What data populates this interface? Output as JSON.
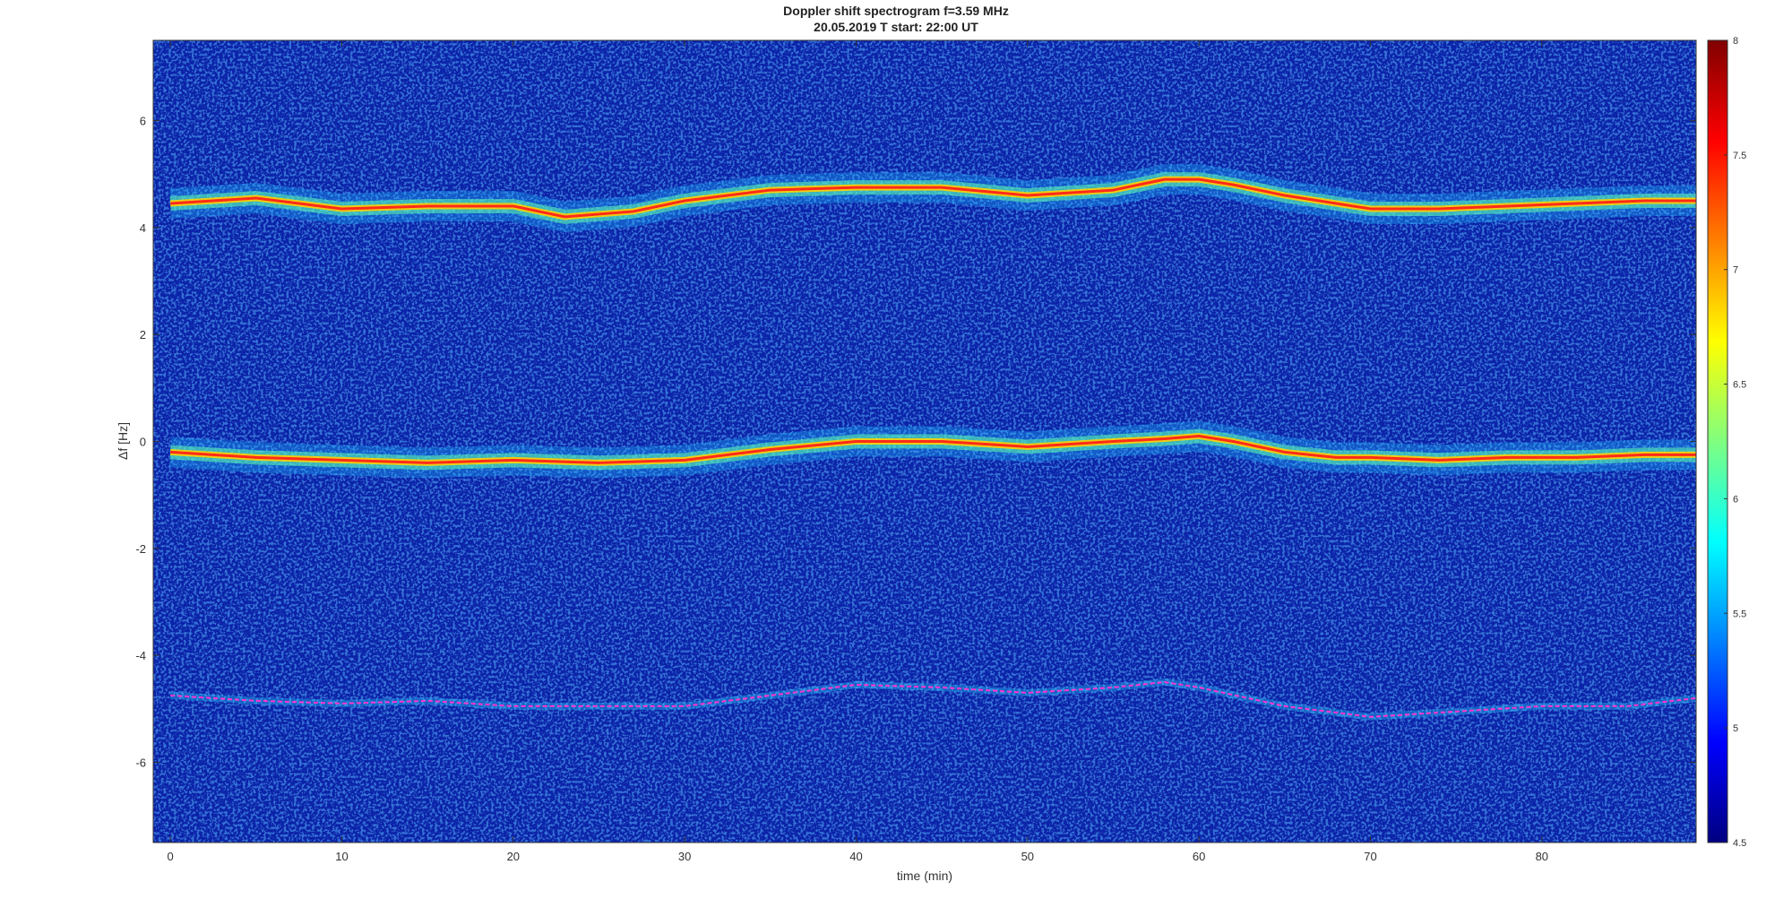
{
  "chart_data": {
    "type": "heatmap",
    "title": "Doppler shift spectrogram f=3.59 MHz",
    "subtitle": "20.05.2019   T start: 22:00 UT",
    "xlabel": "time (min)",
    "ylabel": "Δf [Hz]",
    "xlim": [
      -1,
      89
    ],
    "ylim": [
      -7.5,
      7.5
    ],
    "xticks": [
      0,
      10,
      20,
      30,
      40,
      50,
      60,
      70,
      80
    ],
    "yticks": [
      -6,
      -4,
      -2,
      0,
      2,
      4,
      6
    ],
    "colorbar": {
      "colormap": "jet",
      "range": [
        4.5,
        8
      ],
      "ticks": [
        4.5,
        5,
        5.5,
        6,
        6.5,
        7,
        7.5,
        8
      ]
    },
    "series": [
      {
        "color": "#ff2a1a",
        "x": [
          0,
          5,
          10,
          15,
          20,
          23,
          27,
          30,
          35,
          40,
          45,
          50,
          55,
          58,
          60,
          62,
          65,
          68,
          70,
          74,
          78,
          82,
          86,
          89
        ],
        "y": [
          4.45,
          4.55,
          4.35,
          4.4,
          4.4,
          4.2,
          4.3,
          4.5,
          4.7,
          4.75,
          4.75,
          4.6,
          4.7,
          4.9,
          4.9,
          4.8,
          4.6,
          4.45,
          4.35,
          4.35,
          4.4,
          4.45,
          4.5,
          4.5
        ]
      },
      {
        "color": "#ff2a1a",
        "x": [
          0,
          5,
          10,
          15,
          20,
          25,
          30,
          35,
          40,
          45,
          50,
          55,
          58,
          60,
          62,
          65,
          68,
          70,
          74,
          78,
          82,
          86,
          89
        ],
        "y": [
          -0.2,
          -0.3,
          -0.35,
          -0.4,
          -0.35,
          -0.4,
          -0.35,
          -0.15,
          0.0,
          0.0,
          -0.1,
          0.0,
          0.05,
          0.1,
          0.0,
          -0.2,
          -0.3,
          -0.3,
          -0.35,
          -0.3,
          -0.3,
          -0.25,
          -0.25
        ]
      },
      {
        "color": "#ff33cc",
        "x": [
          0,
          5,
          10,
          15,
          20,
          25,
          30,
          35,
          40,
          45,
          50,
          55,
          58,
          60,
          65,
          70,
          75,
          80,
          85,
          89
        ],
        "y": [
          -4.75,
          -4.85,
          -4.9,
          -4.85,
          -4.95,
          -4.95,
          -4.95,
          -4.75,
          -4.55,
          -4.6,
          -4.7,
          -4.6,
          -4.5,
          -4.6,
          -4.95,
          -5.15,
          -5.05,
          -4.95,
          -4.95,
          -4.8
        ]
      }
    ]
  }
}
